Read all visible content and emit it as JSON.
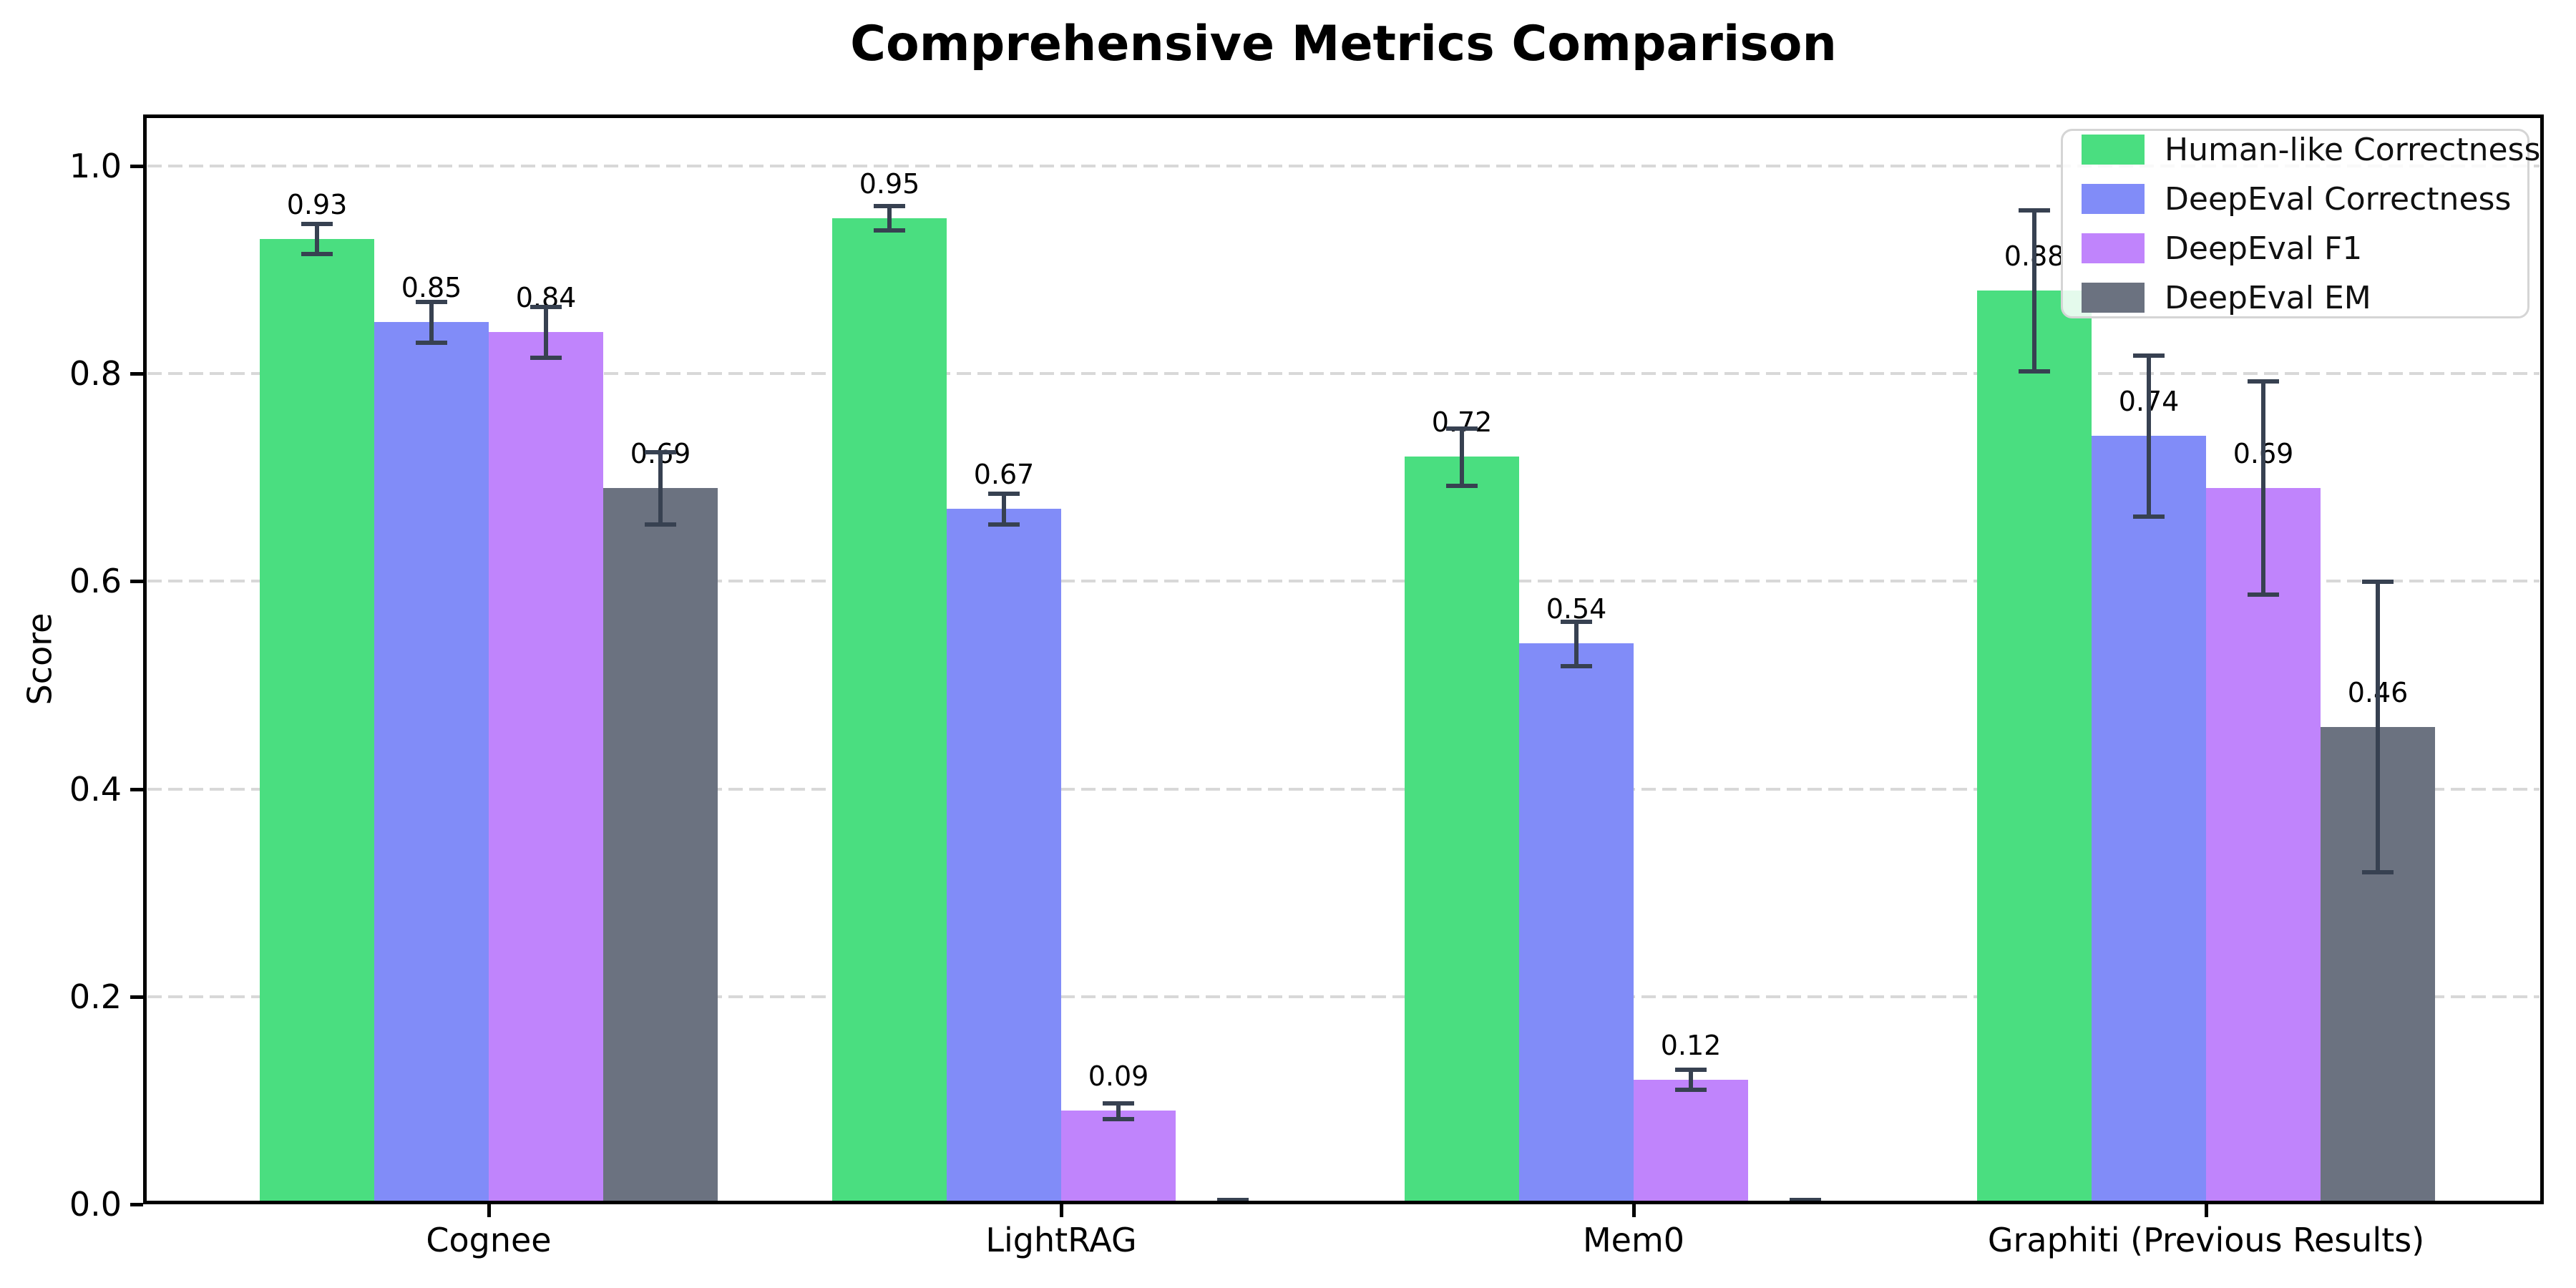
{
  "chart_data": {
    "type": "bar",
    "title": "Comprehensive Metrics Comparison",
    "xlabel": "",
    "ylabel": "Score",
    "ylim": [
      0.0,
      1.05
    ],
    "yticks": [
      0.0,
      0.2,
      0.4,
      0.6,
      0.8,
      1.0
    ],
    "grid": "horizontal dashed, light gray, behind bars",
    "legend_position": "upper right",
    "background": "#ffffff",
    "error_bar_color": "#374151",
    "categories": [
      "Cognee",
      "LightRAG",
      "Mem0",
      "Graphiti (Previous Results)"
    ],
    "series": [
      {
        "name": "Human-like Correctness",
        "color": "#4ade80",
        "values": [
          0.93,
          0.95,
          0.72,
          0.88
        ],
        "errors": [
          0.015,
          0.012,
          0.028,
          0.078
        ],
        "labels": [
          "0.93",
          "0.95",
          "0.72",
          "0.88"
        ]
      },
      {
        "name": "DeepEval Correctness",
        "color": "#818cf8",
        "values": [
          0.85,
          0.67,
          0.54,
          0.74
        ],
        "errors": [
          0.02,
          0.015,
          0.022,
          0.078
        ],
        "labels": [
          "0.85",
          "0.67",
          "0.54",
          "0.74"
        ]
      },
      {
        "name": "DeepEval F1",
        "color": "#c084fc",
        "values": [
          0.84,
          0.09,
          0.12,
          0.69
        ],
        "errors": [
          0.025,
          0.008,
          0.01,
          0.103
        ],
        "labels": [
          "0.84",
          "0.09",
          "0.12",
          "0.69"
        ]
      },
      {
        "name": "DeepEval EM",
        "color": "#6b7280",
        "values": [
          0.69,
          0.0,
          0.0,
          0.46
        ],
        "errors": [
          0.035,
          0.005,
          0.005,
          0.14
        ],
        "labels": [
          "0.69",
          null,
          null,
          "0.46"
        ]
      }
    ]
  }
}
